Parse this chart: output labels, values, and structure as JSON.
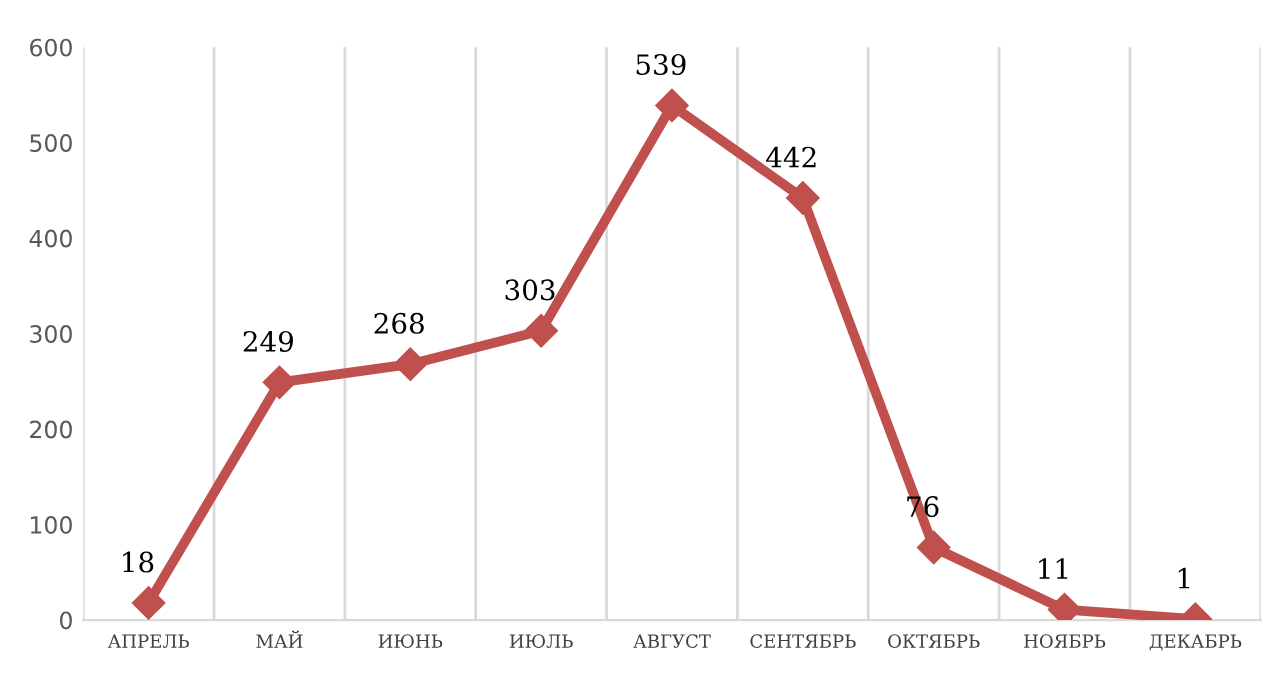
{
  "chart_data": {
    "type": "line",
    "categories": [
      "АПРЕЛЬ",
      "МАЙ",
      "ИЮНЬ",
      "ИЮЛЬ",
      "АВГУСТ",
      "СЕНТЯБРЬ",
      "ОКТЯБРЬ",
      "НОЯБРЬ",
      "ДЕКАБРЬ"
    ],
    "series": [
      {
        "color": "#c0504d",
        "values": [
          18,
          249,
          268,
          303,
          539,
          442,
          76,
          11,
          1
        ]
      }
    ],
    "ylim": [
      0,
      600
    ],
    "yticks": [
      0,
      100,
      200,
      300,
      400,
      500,
      600
    ],
    "grid": "x",
    "marker": "diamond",
    "line_style": "solid",
    "data_labels": true
  }
}
